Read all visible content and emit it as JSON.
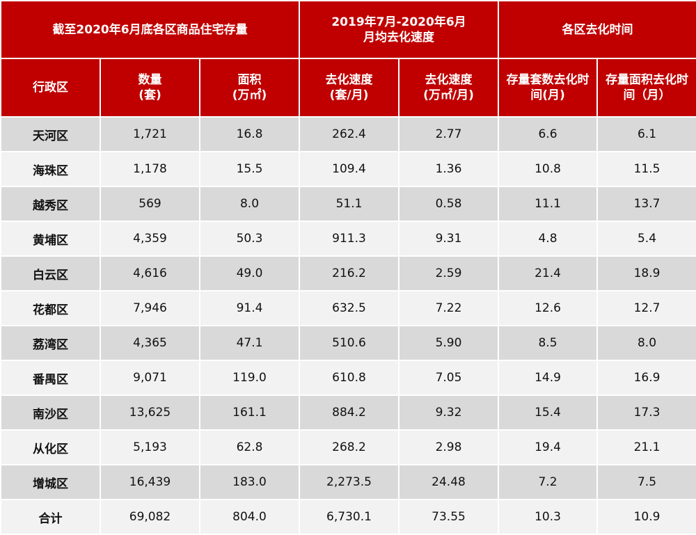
{
  "header": {
    "group1": "截至2020年6月底各区商品住宅存量",
    "group2_line1": "2019年7月-2020年6月",
    "group2_line2": "月均去化速度",
    "group3": "各区去化时间",
    "col_district": "行政区",
    "col_qty_line1": "数量",
    "col_qty_line2": "(套)",
    "col_area_line1": "面积",
    "col_area_line2": "(万㎡)",
    "col_speed_units_line1": "去化速度",
    "col_speed_units_line2": "(套/月)",
    "col_speed_area_line1": "去化速度",
    "col_speed_area_line2": "(万㎡/月)",
    "col_time_units_line1": "存量套数去化时",
    "col_time_units_line2": "间(月)",
    "col_time_area_line1": "存量面积去化时",
    "col_time_area_line2": "间（月）"
  },
  "rows": [
    [
      "天河区",
      "1,721",
      "16.8",
      "262.4",
      "2.77",
      "6.6",
      "6.1"
    ],
    [
      "海珠区",
      "1,178",
      "15.5",
      "109.4",
      "1.36",
      "10.8",
      "11.5"
    ],
    [
      "越秀区",
      "569",
      "8.0",
      "51.1",
      "0.58",
      "11.1",
      "13.7"
    ],
    [
      "黄埔区",
      "4,359",
      "50.3",
      "911.3",
      "9.31",
      "4.8",
      "5.4"
    ],
    [
      "白云区",
      "4,616",
      "49.0",
      "216.2",
      "2.59",
      "21.4",
      "18.9"
    ],
    [
      "花都区",
      "7,946",
      "91.4",
      "632.5",
      "7.22",
      "12.6",
      "12.7"
    ],
    [
      "荔湾区",
      "4,365",
      "47.1",
      "510.6",
      "5.90",
      "8.5",
      "8.0"
    ],
    [
      "番禺区",
      "9,071",
      "119.0",
      "610.8",
      "7.05",
      "14.9",
      "16.9"
    ],
    [
      "南沙区",
      "13,625",
      "161.1",
      "884.2",
      "9.32",
      "15.4",
      "17.3"
    ],
    [
      "从化区",
      "5,193",
      "62.8",
      "268.2",
      "2.98",
      "19.4",
      "21.1"
    ],
    [
      "增城区",
      "16,439",
      "183.0",
      "2,273.5",
      "24.48",
      "7.2",
      "7.5"
    ],
    [
      "合计",
      "69,082",
      "804.0",
      "6,730.1",
      "73.55",
      "10.3",
      "10.9"
    ]
  ],
  "colors": {
    "header_bg": "#c00000",
    "row_odd": "#d9d9d9",
    "row_even": "#f2f2f2"
  }
}
